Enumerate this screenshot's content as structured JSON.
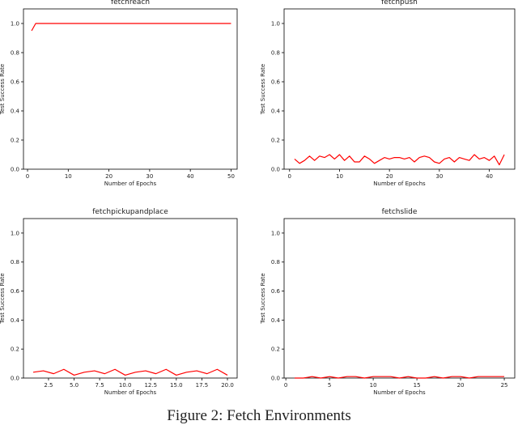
{
  "caption": "Figure 2: Fetch Environments",
  "chart_data": [
    {
      "type": "line",
      "title": "fetchreach",
      "xlabel": "Number of Epochs",
      "ylabel": "Test Success Rate",
      "xlim": [
        -1,
        51.5
      ],
      "ylim": [
        0,
        1.1
      ],
      "xticks": [
        0,
        10,
        20,
        30,
        40,
        50
      ],
      "xtick_labels": [
        "0",
        "10",
        "20",
        "30",
        "40",
        "50"
      ],
      "yticks": [
        0.0,
        0.2,
        0.4,
        0.6,
        0.8,
        1.0
      ],
      "ytick_labels": [
        "0.0",
        "0.2",
        "0.4",
        "0.6",
        "0.8",
        "1.0"
      ],
      "grid": false,
      "line_color": "#ff0000",
      "series": [
        {
          "x": [
            1,
            2,
            3,
            4,
            5,
            6,
            7,
            8,
            9,
            10,
            11,
            12,
            13,
            14,
            15,
            16,
            17,
            18,
            19,
            20,
            21,
            22,
            23,
            24,
            25,
            26,
            27,
            28,
            29,
            30,
            31,
            32,
            33,
            34,
            35,
            36,
            37,
            38,
            39,
            40,
            41,
            42,
            43,
            44,
            45,
            46,
            47,
            48,
            49,
            50
          ],
          "values": [
            0.95,
            1.0,
            1.0,
            1.0,
            1.0,
            1.0,
            1.0,
            1.0,
            1.0,
            1.0,
            1.0,
            1.0,
            1.0,
            1.0,
            1.0,
            1.0,
            1.0,
            1.0,
            1.0,
            1.0,
            1.0,
            1.0,
            1.0,
            1.0,
            1.0,
            1.0,
            1.0,
            1.0,
            1.0,
            1.0,
            1.0,
            1.0,
            1.0,
            1.0,
            1.0,
            1.0,
            1.0,
            1.0,
            1.0,
            1.0,
            1.0,
            1.0,
            1.0,
            1.0,
            1.0,
            1.0,
            1.0,
            1.0,
            1.0,
            1.0
          ]
        }
      ]
    },
    {
      "type": "line",
      "title": "fetchpush",
      "xlabel": "Number of Epochs",
      "ylabel": "Test Success Rate",
      "xlim": [
        -1.1,
        45.1
      ],
      "ylim": [
        0,
        1.1
      ],
      "xticks": [
        0,
        10,
        20,
        30,
        40
      ],
      "xtick_labels": [
        "0",
        "10",
        "20",
        "30",
        "40"
      ],
      "yticks": [
        0.0,
        0.2,
        0.4,
        0.6,
        0.8,
        1.0
      ],
      "ytick_labels": [
        "0.0",
        "0.2",
        "0.4",
        "0.6",
        "0.8",
        "1.0"
      ],
      "grid": false,
      "line_color": "#ff0000",
      "series": [
        {
          "x": [
            1,
            2,
            3,
            4,
            5,
            6,
            7,
            8,
            9,
            10,
            11,
            12,
            13,
            14,
            15,
            16,
            17,
            18,
            19,
            20,
            21,
            22,
            23,
            24,
            25,
            26,
            27,
            28,
            29,
            30,
            31,
            32,
            33,
            34,
            35,
            36,
            37,
            38,
            39,
            40,
            41,
            42,
            43
          ],
          "values": [
            0.07,
            0.04,
            0.06,
            0.09,
            0.06,
            0.09,
            0.08,
            0.1,
            0.07,
            0.1,
            0.06,
            0.09,
            0.05,
            0.05,
            0.09,
            0.07,
            0.04,
            0.06,
            0.08,
            0.07,
            0.08,
            0.08,
            0.07,
            0.08,
            0.05,
            0.08,
            0.09,
            0.08,
            0.05,
            0.04,
            0.07,
            0.08,
            0.05,
            0.08,
            0.07,
            0.06,
            0.1,
            0.07,
            0.08,
            0.06,
            0.09,
            0.03,
            0.1
          ]
        }
      ]
    },
    {
      "type": "line",
      "title": "fetchpickupandplace",
      "xlabel": "Number of Epochs",
      "ylabel": "Test Success Rate",
      "xlim": [
        0.05,
        20.95
      ],
      "ylim": [
        0,
        1.1
      ],
      "xticks": [
        2.5,
        5.0,
        7.5,
        10.0,
        12.5,
        15.0,
        17.5,
        20.0
      ],
      "xtick_labels": [
        "2.5",
        "5.0",
        "7.5",
        "10.0",
        "12.5",
        "15.0",
        "17.5",
        "20.0"
      ],
      "yticks": [
        0.0,
        0.2,
        0.4,
        0.6,
        0.8,
        1.0
      ],
      "ytick_labels": [
        "0.0",
        "0.2",
        "0.4",
        "0.6",
        "0.8",
        "1.0"
      ],
      "grid": false,
      "line_color": "#ff0000",
      "series": [
        {
          "x": [
            1,
            2,
            3,
            4,
            5,
            6,
            7,
            8,
            9,
            10,
            11,
            12,
            13,
            14,
            15,
            16,
            17,
            18,
            19,
            20
          ],
          "values": [
            0.04,
            0.05,
            0.03,
            0.06,
            0.02,
            0.04,
            0.05,
            0.03,
            0.06,
            0.02,
            0.04,
            0.05,
            0.03,
            0.06,
            0.02,
            0.04,
            0.05,
            0.03,
            0.06,
            0.02
          ]
        }
      ]
    },
    {
      "type": "line",
      "title": "fetchslide",
      "xlabel": "Number of Epochs",
      "ylabel": "Test Success Rate",
      "xlim": [
        -0.2,
        26.2
      ],
      "ylim": [
        0,
        1.1
      ],
      "xticks": [
        0,
        5,
        10,
        15,
        20,
        25
      ],
      "xtick_labels": [
        "0",
        "5",
        "10",
        "15",
        "20",
        "25"
      ],
      "yticks": [
        0.0,
        0.2,
        0.4,
        0.6,
        0.8,
        1.0
      ],
      "ytick_labels": [
        "0.0",
        "0.2",
        "0.4",
        "0.6",
        "0.8",
        "1.0"
      ],
      "grid": false,
      "line_color": "#ff0000",
      "series": [
        {
          "x": [
            1,
            2,
            3,
            4,
            5,
            6,
            7,
            8,
            9,
            10,
            11,
            12,
            13,
            14,
            15,
            16,
            17,
            18,
            19,
            20,
            21,
            22,
            23,
            24,
            25
          ],
          "values": [
            0.0,
            0.0,
            0.01,
            0.0,
            0.01,
            0.0,
            0.01,
            0.01,
            0.0,
            0.01,
            0.01,
            0.01,
            0.0,
            0.01,
            0.0,
            0.0,
            0.01,
            0.0,
            0.01,
            0.01,
            0.0,
            0.01,
            0.01,
            0.01,
            0.01
          ]
        }
      ]
    }
  ]
}
